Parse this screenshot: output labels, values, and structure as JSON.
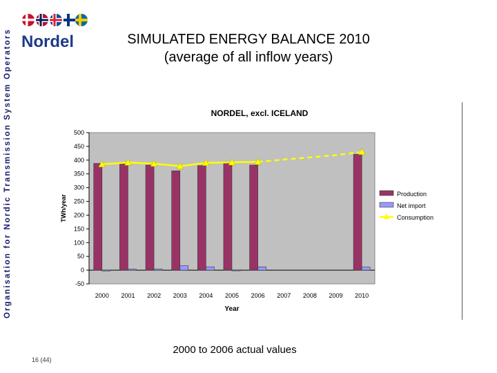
{
  "side_text": "Organisation for Nordic Transmission System Operators",
  "logo_text": "Nordel",
  "slide_title_line1": "SIMULATED ENERGY BALANCE 2010",
  "slide_title_line2": "(average of all inflow years)",
  "footnote": "2000 to 2006 actual values",
  "page_number": "16 (44)",
  "colors": {
    "production": "#993366",
    "net_import": "#9999ff",
    "consumption": "#ffff00",
    "plot_bg": "#c0c0c0",
    "side_text": "#1a1a6e"
  },
  "chart_data": {
    "type": "bar",
    "title": "NORDEL, excl. ICELAND",
    "xlabel": "Year",
    "ylabel": "TWh/year",
    "categories": [
      "2000",
      "2001",
      "2002",
      "2003",
      "2004",
      "2005",
      "2006",
      "2007",
      "2008",
      "2009",
      "2010"
    ],
    "ylim": [
      -50,
      500
    ],
    "yticks": [
      500,
      450,
      400,
      350,
      300,
      250,
      200,
      150,
      100,
      50,
      0,
      -50
    ],
    "grid": false,
    "legend_position": "right",
    "series": [
      {
        "name": "Production",
        "kind": "bar",
        "color": "#993366",
        "values": [
          388,
          387,
          382,
          361,
          380,
          394,
          382,
          null,
          null,
          null,
          421
        ]
      },
      {
        "name": "Net import",
        "kind": "bar",
        "color": "#9999ff",
        "values": [
          -3,
          4,
          4,
          16,
          12,
          -2,
          12,
          null,
          null,
          null,
          11
        ]
      },
      {
        "name": "Consumption",
        "kind": "line",
        "color": "#ffff00",
        "values": [
          385,
          391,
          387,
          378,
          390,
          392,
          394,
          402,
          410,
          418,
          430
        ],
        "actual_until_index": 6
      }
    ]
  }
}
